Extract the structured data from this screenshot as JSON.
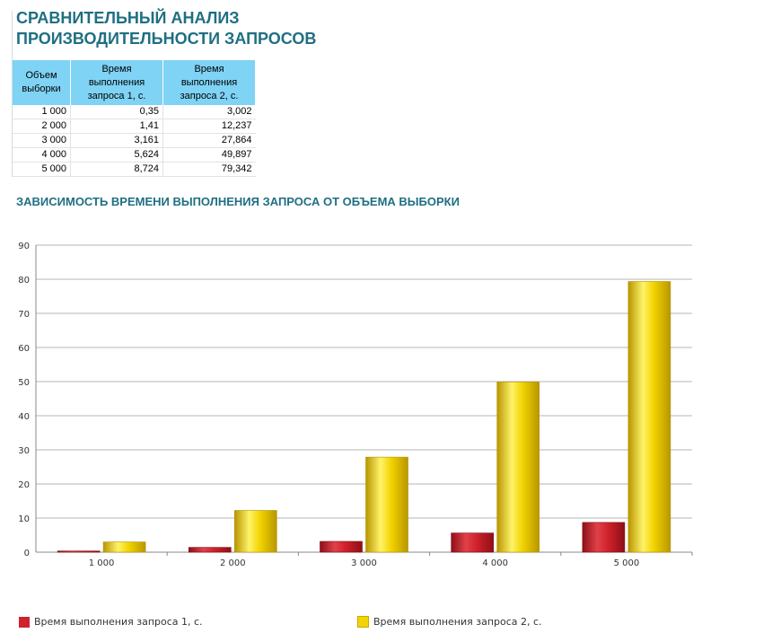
{
  "page": {
    "title_lines": [
      "СРАВНИТЕЛЬНЫЙ АНАЛИЗ",
      "ПРОИЗВОДИТЕЛЬНОСТИ ЗАПРОСОВ"
    ],
    "chart_title": "ЗАВИСИМОСТЬ ВРЕМЕНИ ВЫПОЛНЕНИЯ ЗАПРОСА ОТ ОБЪЕМА ВЫБОРКИ"
  },
  "table": {
    "headers": [
      [
        "Объем",
        "выборки"
      ],
      [
        "Время",
        "выполнения",
        "запроса 1, с."
      ],
      [
        "Время",
        "выполнения",
        "запроса 2, с."
      ]
    ],
    "rows": [
      [
        "1 000",
        "0,35",
        "3,002"
      ],
      [
        "2 000",
        "1,41",
        "12,237"
      ],
      [
        "3 000",
        "3,161",
        "27,864"
      ],
      [
        "4 000",
        "5,624",
        "49,897"
      ],
      [
        "5 000",
        "8,724",
        "79,342"
      ]
    ]
  },
  "chart_data": {
    "type": "bar",
    "title": "ЗАВИСИМОСТЬ ВРЕМЕНИ ВЫПОЛНЕНИЯ ЗАПРОСА ОТ ОБЪЕМА ВЫБОРКИ",
    "categories": [
      "1 000",
      "2 000",
      "3 000",
      "4 000",
      "5 000"
    ],
    "series": [
      {
        "name": "Время выполнения запроса 1, с.",
        "values": [
          0.35,
          1.41,
          3.161,
          5.624,
          8.724
        ],
        "color": "#d0222c"
      },
      {
        "name": "Время выполнения запроса 2, с.",
        "values": [
          3.002,
          12.237,
          27.864,
          49.897,
          79.342
        ],
        "color": "#f2d400"
      }
    ],
    "ylim": [
      0,
      90
    ],
    "yticks": [
      0,
      10,
      20,
      30,
      40,
      50,
      60,
      70,
      80,
      90
    ],
    "grid": true,
    "legend": "bottom"
  }
}
